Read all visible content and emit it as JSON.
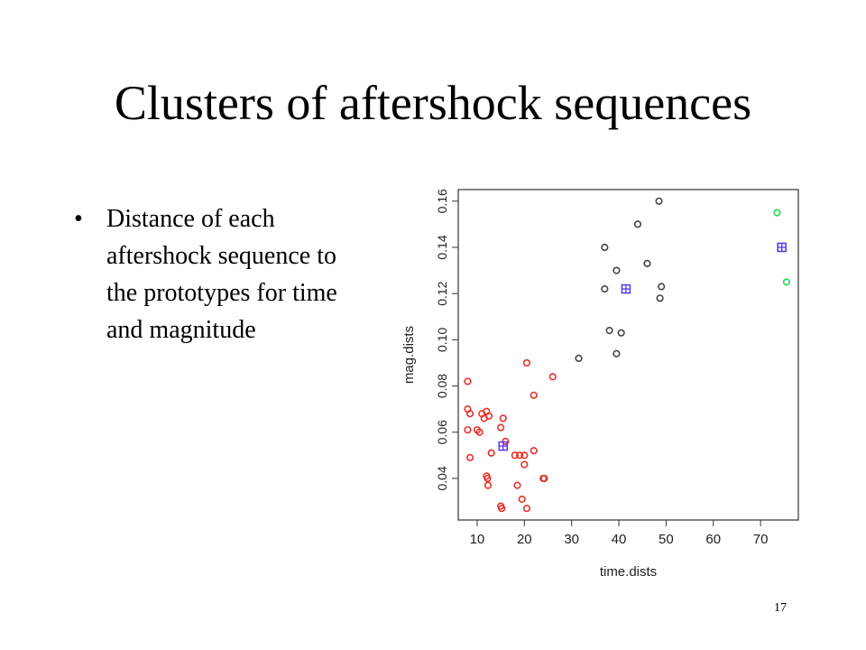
{
  "slide": {
    "title": "Clusters of aftershock sequences",
    "bullets": [
      "Distance of each aftershock sequence to the prototypes for time and magnitude"
    ],
    "page_number": "17"
  },
  "colors": {
    "cluster_red": "#e8302a",
    "cluster_black": "#444444",
    "cluster_green": "#22dd55",
    "prototype": "#5533ee"
  },
  "chart_data": {
    "type": "scatter",
    "title": "",
    "xlabel": "time.dists",
    "ylabel": "mag.dists",
    "xlim": [
      6,
      78
    ],
    "ylim": [
      0.022,
      0.165
    ],
    "xticks": [
      10,
      20,
      30,
      40,
      50,
      60,
      70
    ],
    "yticks": [
      0.04,
      0.06,
      0.08,
      0.1,
      0.12,
      0.14,
      0.16
    ],
    "ytick_labels": [
      "0.04",
      "0.06",
      "0.08",
      "0.10",
      "0.12",
      "0.14",
      "0.16"
    ],
    "grid": false,
    "series": [
      {
        "color": "red",
        "marker": "circle",
        "points": [
          [
            8,
            0.082
          ],
          [
            8,
            0.07
          ],
          [
            8.5,
            0.068
          ],
          [
            8,
            0.061
          ],
          [
            8.5,
            0.049
          ],
          [
            10,
            0.061
          ],
          [
            10.5,
            0.06
          ],
          [
            11,
            0.068
          ],
          [
            11.5,
            0.066
          ],
          [
            12,
            0.069
          ],
          [
            12.5,
            0.067
          ],
          [
            12,
            0.041
          ],
          [
            12.2,
            0.04
          ],
          [
            12.3,
            0.037
          ],
          [
            13,
            0.051
          ],
          [
            15,
            0.062
          ],
          [
            15.5,
            0.066
          ],
          [
            15,
            0.028
          ],
          [
            15.2,
            0.027
          ],
          [
            16,
            0.056
          ],
          [
            18,
            0.05
          ],
          [
            19,
            0.05
          ],
          [
            20,
            0.05
          ],
          [
            18.5,
            0.037
          ],
          [
            19.5,
            0.031
          ],
          [
            20,
            0.046
          ],
          [
            20.5,
            0.09
          ],
          [
            20.5,
            0.027
          ],
          [
            22,
            0.076
          ],
          [
            22,
            0.052
          ],
          [
            24,
            0.04
          ],
          [
            24.2,
            0.04
          ],
          [
            26,
            0.084
          ]
        ]
      },
      {
        "color": "black",
        "marker": "circle",
        "points": [
          [
            31.5,
            0.092
          ],
          [
            37,
            0.14
          ],
          [
            37,
            0.122
          ],
          [
            38,
            0.104
          ],
          [
            39.5,
            0.13
          ],
          [
            39.5,
            0.094
          ],
          [
            40.5,
            0.103
          ],
          [
            44,
            0.15
          ],
          [
            46,
            0.133
          ],
          [
            48.5,
            0.16
          ],
          [
            49,
            0.123
          ],
          [
            48.7,
            0.118
          ]
        ]
      },
      {
        "color": "green",
        "marker": "circle",
        "points": [
          [
            73.5,
            0.155
          ],
          [
            75.5,
            0.125
          ]
        ]
      },
      {
        "color": "blue",
        "marker": "boxed-plus",
        "points": [
          [
            15.5,
            0.054
          ],
          [
            41.5,
            0.122
          ],
          [
            74.5,
            0.14
          ]
        ]
      }
    ]
  }
}
